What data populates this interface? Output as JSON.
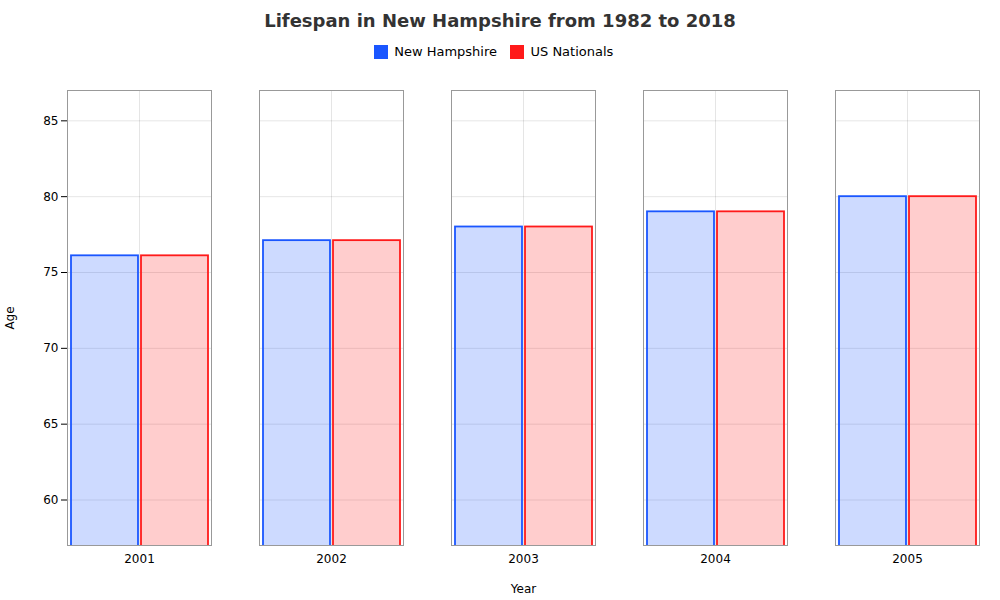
{
  "chart_data": {
    "type": "bar",
    "title": "Lifespan in New Hampshire from 1982 to 2018",
    "xlabel": "Year",
    "ylabel": "Age",
    "categories": [
      2001,
      2002,
      2003,
      2004,
      2005
    ],
    "series": [
      {
        "name": "New Hampshire",
        "color": "#1a56ff",
        "values": [
          76.1,
          77.1,
          78.0,
          79.0,
          80.0
        ]
      },
      {
        "name": "US Nationals",
        "color": "#ff1a1a",
        "values": [
          76.1,
          77.1,
          78.0,
          79.0,
          80.0
        ]
      }
    ],
    "ylim": [
      57,
      87
    ],
    "yticks": [
      60,
      65,
      70,
      75,
      80,
      85
    ],
    "grid": true,
    "legend": "top"
  }
}
